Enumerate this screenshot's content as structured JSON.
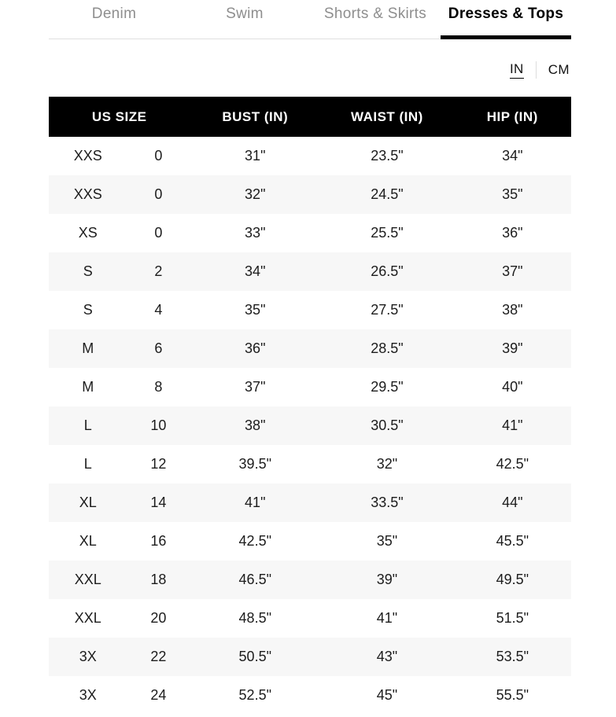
{
  "tabs": [
    {
      "label": "Denim",
      "active": false
    },
    {
      "label": "Swim",
      "active": false
    },
    {
      "label": "Shorts & Skirts",
      "active": false
    },
    {
      "label": "Dresses & Tops",
      "active": true
    }
  ],
  "unit_toggle": {
    "options": [
      {
        "label": "IN",
        "active": true
      },
      {
        "label": "CM",
        "active": false
      }
    ]
  },
  "table": {
    "headers": [
      "US SIZE",
      "BUST (IN)",
      "WAIST (IN)",
      "HIP (IN)"
    ],
    "rows": [
      [
        "XXS",
        "0",
        "31\"",
        "23.5\"",
        "34\""
      ],
      [
        "XXS",
        "0",
        "32\"",
        "24.5\"",
        "35\""
      ],
      [
        "XS",
        "0",
        "33\"",
        "25.5\"",
        "36\""
      ],
      [
        "S",
        "2",
        "34\"",
        "26.5\"",
        "37\""
      ],
      [
        "S",
        "4",
        "35\"",
        "27.5\"",
        "38\""
      ],
      [
        "M",
        "6",
        "36\"",
        "28.5\"",
        "39\""
      ],
      [
        "M",
        "8",
        "37\"",
        "29.5\"",
        "40\""
      ],
      [
        "L",
        "10",
        "38\"",
        "30.5\"",
        "41\""
      ],
      [
        "L",
        "12",
        "39.5\"",
        "32\"",
        "42.5\""
      ],
      [
        "XL",
        "14",
        "41\"",
        "33.5\"",
        "44\""
      ],
      [
        "XL",
        "16",
        "42.5\"",
        "35\"",
        "45.5\""
      ],
      [
        "XXL",
        "18",
        "46.5\"",
        "39\"",
        "49.5\""
      ],
      [
        "XXL",
        "20",
        "48.5\"",
        "41\"",
        "51.5\""
      ],
      [
        "3X",
        "22",
        "50.5\"",
        "43\"",
        "53.5\""
      ],
      [
        "3X",
        "24",
        "52.5\"",
        "45\"",
        "55.5\""
      ]
    ]
  },
  "colors": {
    "header_bg": "#000000",
    "header_text": "#ffffff",
    "row_alt_bg": "#f7f7f7",
    "tab_inactive_text": "#8e8e8e",
    "tab_active_text": "#000000",
    "tab_indicator": "#000000",
    "divider": "#e0e0e0"
  }
}
